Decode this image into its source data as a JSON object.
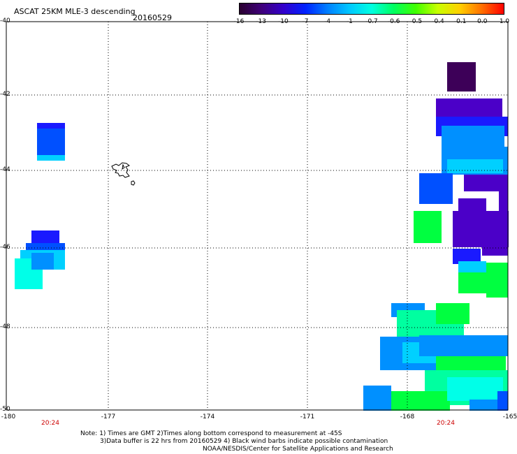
{
  "header": {
    "title": "ASCAT 25KM MLE-3 descending",
    "date": "20160529"
  },
  "colorbar": {
    "labels": [
      "-16",
      "-13",
      "-10",
      "-7",
      "-4",
      "-1",
      "-0.7",
      "-0.6",
      "-0.5",
      "-0.4",
      "-0.1",
      "0.0",
      "1.0"
    ],
    "colors": [
      "#2a0030",
      "#3f007a",
      "#3300cc",
      "#0022ff",
      "#0080ff",
      "#00c8ff",
      "#00ffe0",
      "#00ff60",
      "#40ff00",
      "#c8ff00",
      "#ffd000",
      "#ff7000",
      "#ff0000"
    ]
  },
  "axes": {
    "y_labels": [
      "-40",
      "-42",
      "-44",
      "-46",
      "-48",
      "-50"
    ],
    "x_labels": [
      "-180",
      "-177",
      "-174",
      "-171",
      "-168",
      "-165"
    ],
    "time_labels": [
      "20:24",
      "20:24"
    ]
  },
  "notes": {
    "line1": "Note: 1) Times are GMT 2)Times along bottom correspond to measurement at -45S",
    "line2": "3)Data buffer is 22 hrs from 20160529 4) Black wind barbs indicate possible contamination",
    "line3": "NOAA/NESDIS/Center for Satellite Applications and Research"
  },
  "swath_colors": {
    "dark_purple": "#3d0058",
    "purple": "#4b00c8",
    "blue": "#1a1aff",
    "mid_blue": "#0050ff",
    "light_blue": "#0090ff",
    "cyan": "#00d0ff",
    "aqua": "#00ffe8",
    "green": "#00ff40",
    "sea_green": "#00ffa0"
  }
}
